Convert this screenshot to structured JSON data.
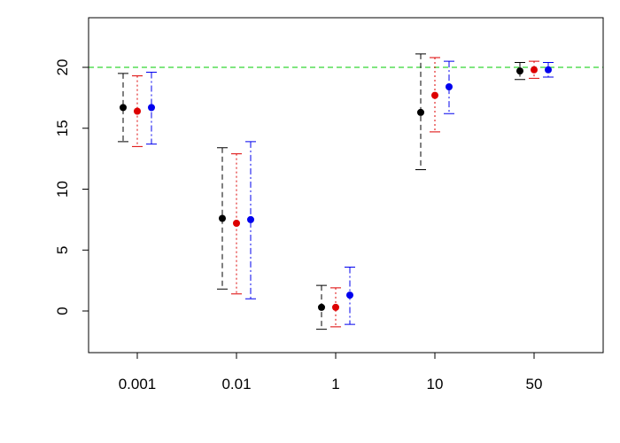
{
  "chart_data": {
    "type": "scatter",
    "subtype": "error-bar",
    "title": "",
    "xlabel": "",
    "ylabel": "",
    "categories": [
      "0.001",
      "0.01",
      "1",
      "10",
      "50"
    ],
    "yticks": [
      0,
      5,
      10,
      15,
      20
    ],
    "ylim": [
      -3.5,
      24
    ],
    "grid": false,
    "reference_line": {
      "y": 20,
      "color": "#00cc00",
      "style": "dashed"
    },
    "series": [
      {
        "color": "#000000",
        "line_style": "dashed",
        "values": [
          16.7,
          7.6,
          0.3,
          16.3,
          19.7
        ],
        "lower": [
          13.9,
          1.8,
          -1.5,
          11.6,
          19.0
        ],
        "upper": [
          19.5,
          13.4,
          2.1,
          21.1,
          20.4
        ]
      },
      {
        "color": "#dd0000",
        "line_style": "dotted",
        "values": [
          16.4,
          7.2,
          0.3,
          17.7,
          19.8
        ],
        "lower": [
          13.5,
          1.4,
          -1.3,
          14.7,
          19.1
        ],
        "upper": [
          19.3,
          12.9,
          1.9,
          20.8,
          20.5
        ]
      },
      {
        "color": "#0000ee",
        "line_style": "dashdot",
        "values": [
          16.7,
          7.5,
          1.3,
          18.4,
          19.8
        ],
        "lower": [
          13.7,
          1.0,
          -1.1,
          16.2,
          19.2
        ],
        "upper": [
          19.6,
          13.9,
          3.6,
          20.5,
          20.4
        ]
      }
    ]
  }
}
